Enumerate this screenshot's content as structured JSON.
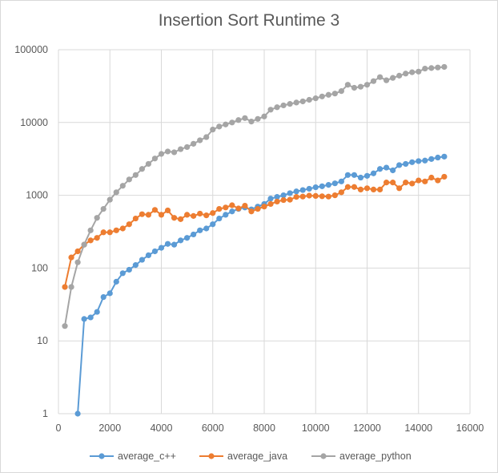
{
  "chart_data": {
    "type": "scatter",
    "mode": "lines+markers",
    "title": "Insertion Sort Runtime 3",
    "xlabel": "",
    "ylabel": "",
    "xlim": [
      0,
      16000
    ],
    "ylim": [
      1,
      100000
    ],
    "yscale": "log",
    "grid": true,
    "legend_position": "bottom",
    "x_ticks": [
      0,
      2000,
      4000,
      6000,
      8000,
      10000,
      12000,
      14000,
      16000
    ],
    "y_ticks": [
      1,
      10,
      100,
      1000,
      10000,
      100000
    ],
    "series": [
      {
        "name": "average_c++",
        "color": "#5b9bd5",
        "x": [
          750,
          1000,
          1250,
          1500,
          1750,
          2000,
          2250,
          2500,
          2750,
          3000,
          3250,
          3500,
          3750,
          4000,
          4250,
          4500,
          4750,
          5000,
          5250,
          5500,
          5750,
          6000,
          6250,
          6500,
          6750,
          7000,
          7250,
          7500,
          7750,
          8000,
          8250,
          8500,
          8750,
          9000,
          9250,
          9500,
          9750,
          10000,
          10250,
          10500,
          10750,
          11000,
          11250,
          11500,
          11750,
          12000,
          12250,
          12500,
          12750,
          13000,
          13250,
          13500,
          13750,
          14000,
          14250,
          14500,
          14750,
          15000
        ],
        "y": [
          1,
          20,
          21,
          25,
          40,
          45,
          65,
          85,
          95,
          110,
          130,
          150,
          170,
          190,
          215,
          210,
          240,
          260,
          290,
          330,
          350,
          400,
          480,
          540,
          600,
          650,
          680,
          640,
          700,
          760,
          900,
          950,
          1000,
          1070,
          1130,
          1180,
          1230,
          1290,
          1330,
          1390,
          1460,
          1550,
          1900,
          1900,
          1750,
          1850,
          2000,
          2300,
          2400,
          2200,
          2600,
          2700,
          2850,
          2950,
          3000,
          3150,
          3300,
          3400
        ]
      },
      {
        "name": "average_java",
        "color": "#ed7d31",
        "x": [
          250,
          500,
          750,
          1000,
          1250,
          1500,
          1750,
          2000,
          2250,
          2500,
          2750,
          3000,
          3250,
          3500,
          3750,
          4000,
          4250,
          4500,
          4750,
          5000,
          5250,
          5500,
          5750,
          6000,
          6250,
          6500,
          6750,
          7000,
          7250,
          7500,
          7750,
          8000,
          8250,
          8500,
          8750,
          9000,
          9250,
          9500,
          9750,
          10000,
          10250,
          10500,
          10750,
          11000,
          11250,
          11500,
          11750,
          12000,
          12250,
          12500,
          12750,
          13000,
          13250,
          13500,
          13750,
          14000,
          14250,
          14500,
          14750,
          15000
        ],
        "y": [
          55,
          140,
          170,
          210,
          240,
          260,
          310,
          310,
          330,
          350,
          400,
          480,
          550,
          540,
          630,
          540,
          620,
          490,
          470,
          540,
          520,
          560,
          530,
          570,
          650,
          680,
          730,
          660,
          720,
          600,
          650,
          700,
          760,
          820,
          860,
          870,
          950,
          960,
          990,
          980,
          970,
          960,
          1000,
          1100,
          1300,
          1300,
          1200,
          1250,
          1200,
          1200,
          1500,
          1500,
          1250,
          1500,
          1450,
          1600,
          1550,
          1750,
          1600,
          1800
        ]
      },
      {
        "name": "average_python",
        "color": "#a5a5a5",
        "x": [
          250,
          500,
          750,
          1000,
          1250,
          1500,
          1750,
          2000,
          2250,
          2500,
          2750,
          3000,
          3250,
          3500,
          3750,
          4000,
          4250,
          4500,
          4750,
          5000,
          5250,
          5500,
          5750,
          6000,
          6250,
          6500,
          6750,
          7000,
          7250,
          7500,
          7750,
          8000,
          8250,
          8500,
          8750,
          9000,
          9250,
          9500,
          9750,
          10000,
          10250,
          10500,
          10750,
          11000,
          11250,
          11500,
          11750,
          12000,
          12250,
          12500,
          12750,
          13000,
          13250,
          13500,
          13750,
          14000,
          14250,
          14500,
          14750,
          15000
        ],
        "y": [
          16,
          55,
          120,
          210,
          330,
          490,
          650,
          870,
          1100,
          1350,
          1650,
          1900,
          2300,
          2700,
          3200,
          3700,
          4000,
          3900,
          4300,
          4600,
          5100,
          5700,
          6300,
          8000,
          8800,
          9400,
          10000,
          10800,
          11500,
          10300,
          11200,
          12100,
          15000,
          16200,
          17200,
          18000,
          18800,
          19500,
          20500,
          21500,
          22800,
          24000,
          25000,
          27000,
          33000,
          30000,
          31000,
          33000,
          37000,
          42000,
          38000,
          41000,
          44000,
          47000,
          49000,
          50000,
          55000,
          56000,
          57000,
          58000
        ]
      }
    ]
  }
}
